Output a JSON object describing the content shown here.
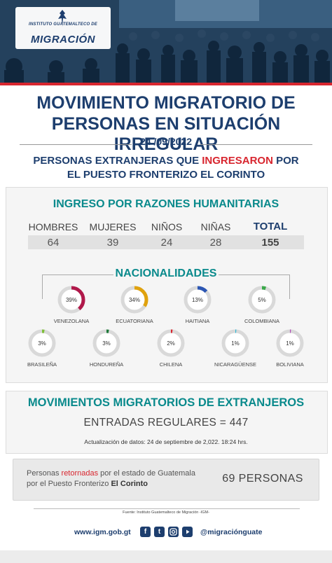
{
  "logo": {
    "line1": "INSTITUTO GUATEMALTECO DE",
    "line2": "MIGRACIÓN"
  },
  "header": {
    "title_line1": "MOVIMIENTO MIGRATORIO DE",
    "title_line2": "PERSONAS EN SITUACIÓN IRREGULAR",
    "date": "24 /09/2022",
    "subtitle_part1": "PERSONAS EXTRANJERAS QUE ",
    "subtitle_highlight": "INGRESARON",
    "subtitle_part2": " POR",
    "subtitle_line2": "EL PUESTO FRONTERIZO EL CORINTO"
  },
  "humanitarian": {
    "title": "INGRESO POR RAZONES HUMANITARIAS",
    "columns": [
      {
        "label": "HOMBRES",
        "value": "64"
      },
      {
        "label": "MUJERES",
        "value": "39"
      },
      {
        "label": "NIÑOS",
        "value": "24"
      },
      {
        "label": "NIÑAS",
        "value": "28"
      },
      {
        "label": "TOTAL",
        "value": "155"
      }
    ]
  },
  "nationalities": {
    "title": "NACIONALIDADES",
    "items": [
      {
        "name": "VENEZOLANA",
        "pct_label": "39%",
        "pct": 39,
        "color": "#b0184a"
      },
      {
        "name": "ECUATORIANA",
        "pct_label": "34%",
        "pct": 34,
        "color": "#e0a20e"
      },
      {
        "name": "HAITIANA",
        "pct_label": "13%",
        "pct": 13,
        "color": "#2c56b3"
      },
      {
        "name": "COLOMBIANA",
        "pct_label": "5%",
        "pct": 5,
        "color": "#3aa84a"
      },
      {
        "name": "BRASILEÑA",
        "pct_label": "3%",
        "pct": 3,
        "color": "#7fbf3a"
      },
      {
        "name": "HONDUREÑA",
        "pct_label": "3%",
        "pct": 3,
        "color": "#1f7a3a"
      },
      {
        "name": "CHILENA",
        "pct_label": "2%",
        "pct": 2,
        "color": "#d8262f"
      },
      {
        "name": "NICARAGÜENSE",
        "pct_label": "1%",
        "pct": 1,
        "color": "#2fb7d6"
      },
      {
        "name": "BOLIVIANA",
        "pct_label": "1%",
        "pct": 1,
        "color": "#b14bb8"
      }
    ]
  },
  "movements": {
    "title": "MOVIMIENTOS MIGRATORIOS DE EXTRANJEROS",
    "entradas": "ENTRADAS REGULARES = 447",
    "update": "Actualización de datos: 24 de septiembre de 2,022. 18:24 hrs."
  },
  "returned": {
    "line1_a": "Personas ",
    "line1_hl": "retornadas",
    "line1_b": " por el estado de Guatemala",
    "line2_a": "por el Puesto Fronterizo ",
    "line2_bold": "El Corinto",
    "count": "69 PERSONAS"
  },
  "source": "Fuente: Instituto Guatemalteco de Migración -IGM-",
  "footer": {
    "url": "www.igm.gob.gt",
    "handle": "@migraciónguate",
    "icons": [
      "facebook-icon",
      "twitter-icon",
      "instagram-icon",
      "youtube-icon"
    ]
  }
}
